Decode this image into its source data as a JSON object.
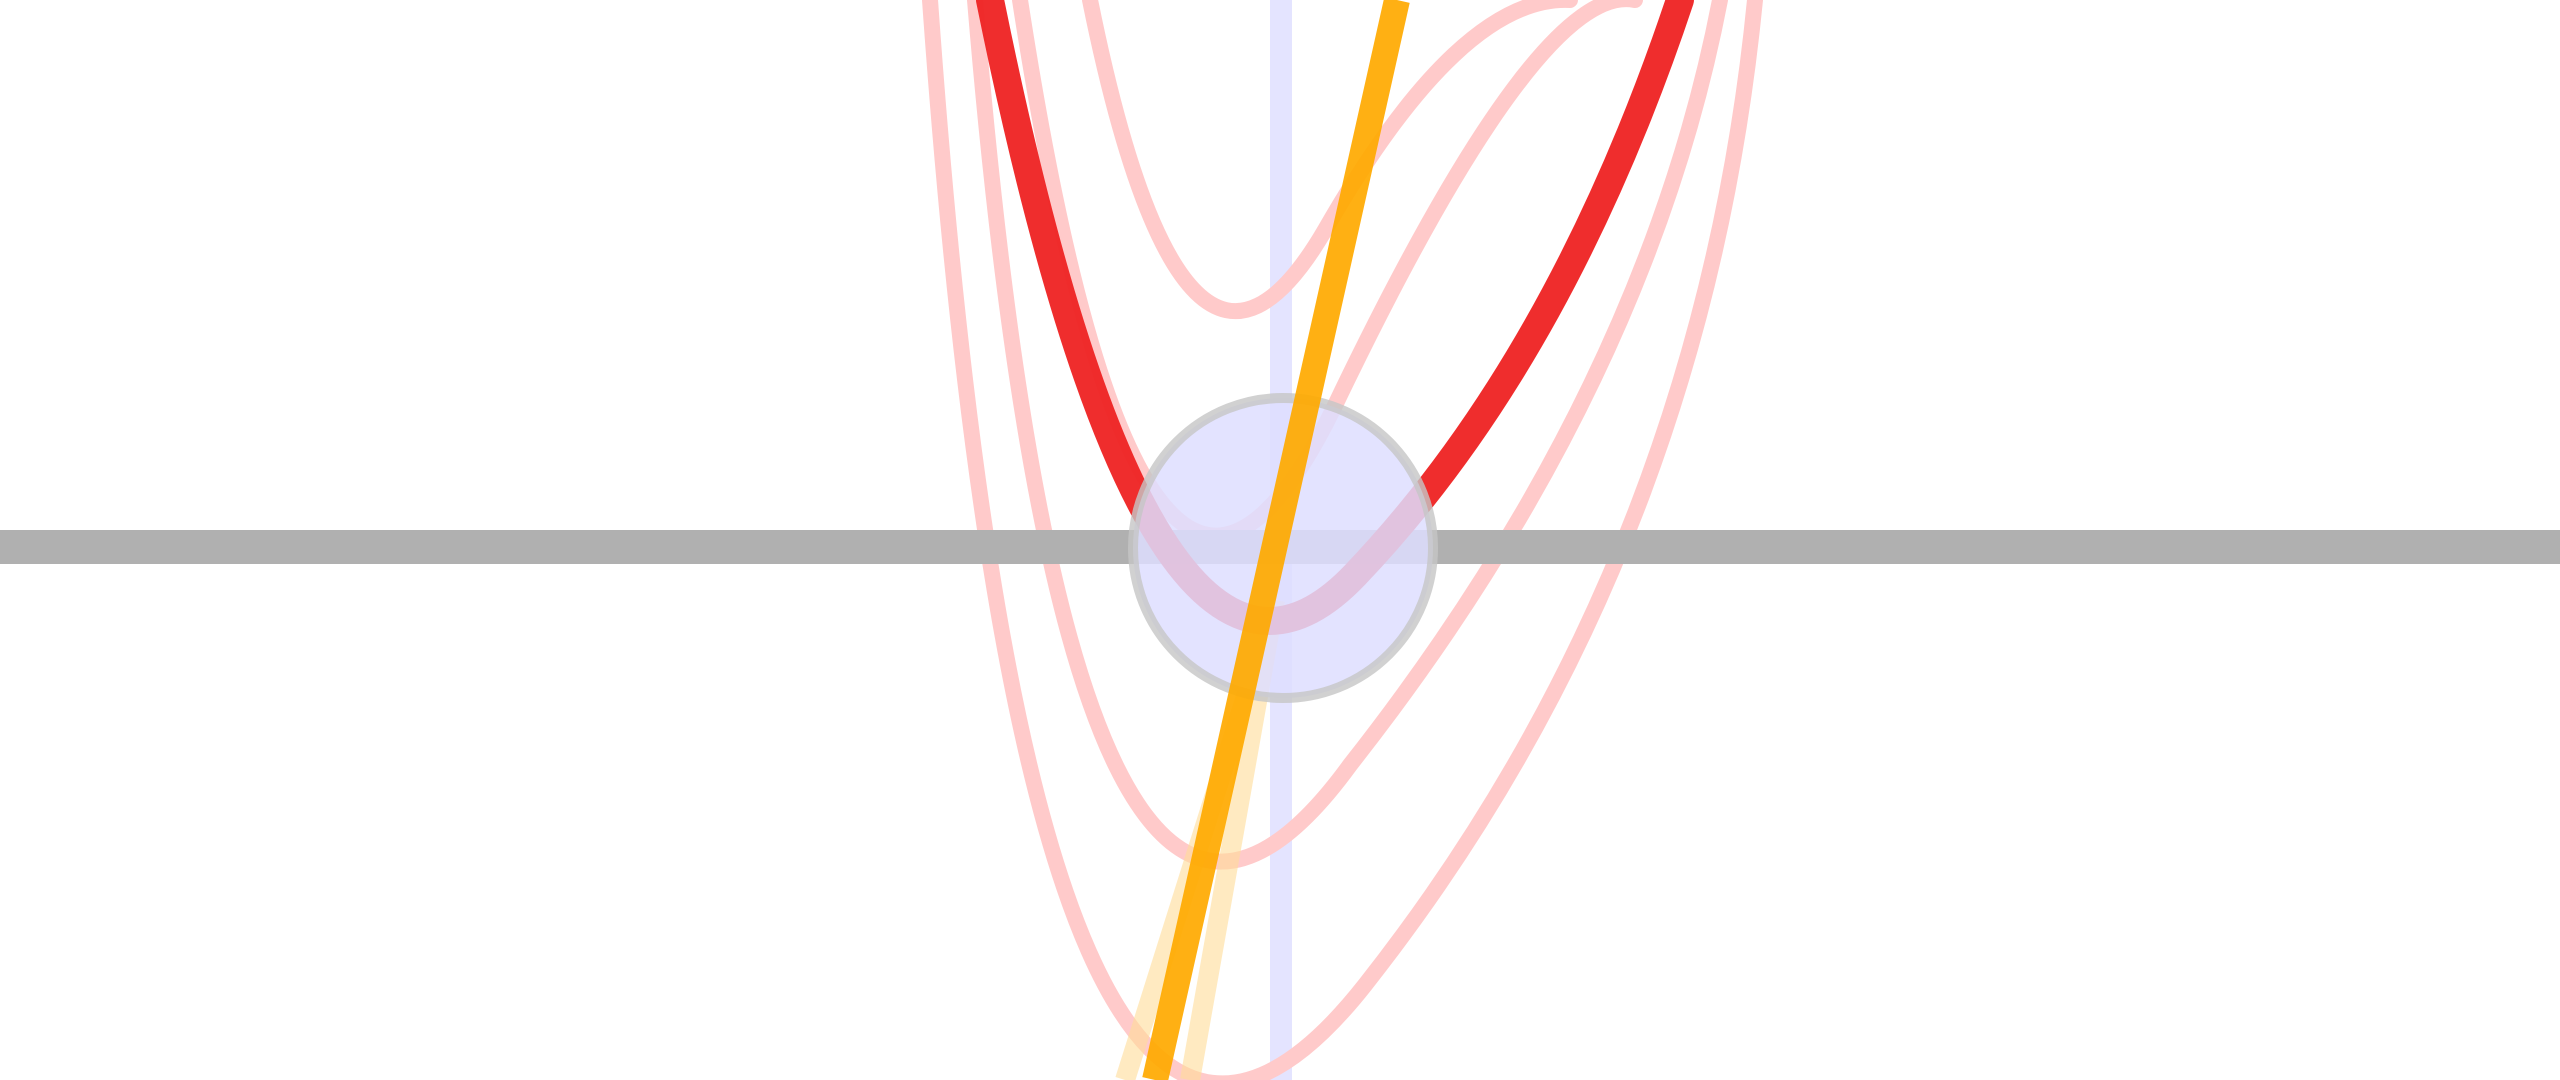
{
  "scene": {
    "description_free": true,
    "colors": {
      "background": "#ffffff",
      "axis_line": "#b0b0b0",
      "vertical_guide": "#e6e6ff",
      "primary_parabola": "#ee2222",
      "faint_parabola": "#ffcccc",
      "tangent_line": "#ffaa00",
      "tangent_faint": "#ffd98a",
      "handle_fill": "#dedeff",
      "handle_stroke": "#c8c8c8"
    }
  }
}
